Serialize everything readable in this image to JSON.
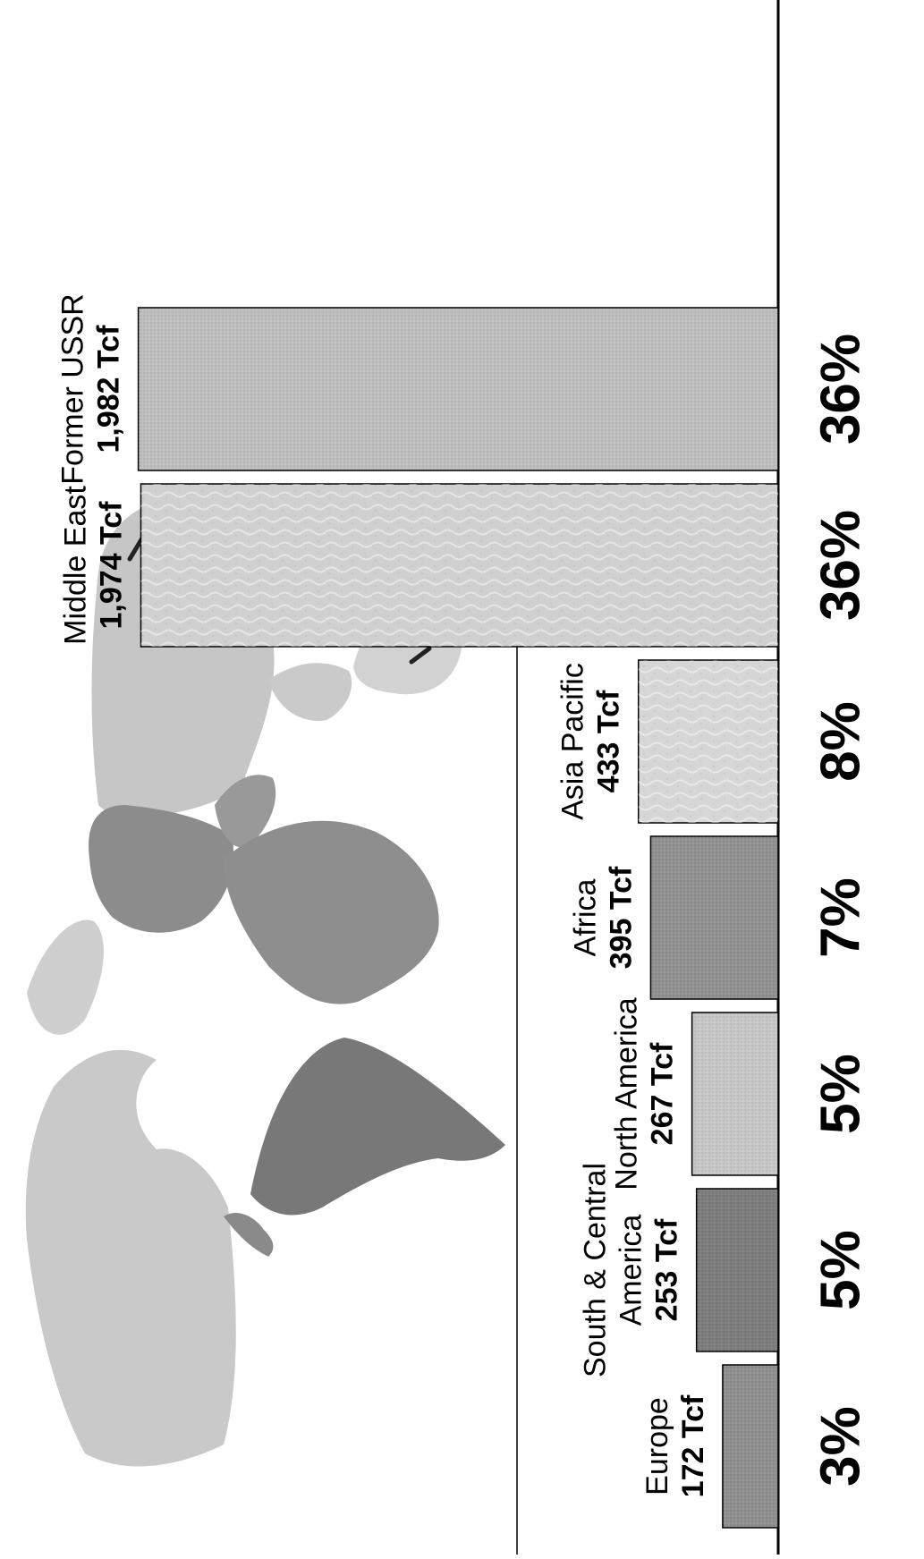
{
  "chart_data": {
    "type": "bar",
    "orientation": "rotated-90",
    "unit": "Tcf",
    "categories": [
      "Europe",
      "South & Central America",
      "North America",
      "Africa",
      "Asia Pacific",
      "Middle East",
      "Former USSR"
    ],
    "label_lines": [
      [
        "Europe"
      ],
      [
        "South & Central",
        "America"
      ],
      [
        "North America"
      ],
      [
        "Africa"
      ],
      [
        "Asia Pacific"
      ],
      [
        "Middle East"
      ],
      [
        "Former USSR"
      ]
    ],
    "values": [
      172,
      253,
      267,
      395,
      433,
      1974,
      1982
    ],
    "value_labels": [
      "172 Tcf",
      "253 Tcf",
      "267 Tcf",
      "395 Tcf",
      "433 Tcf",
      "1,974 Tcf",
      "1,982 Tcf"
    ],
    "shares": [
      "3%",
      "5%",
      "5%",
      "7%",
      "8%",
      "36%",
      "36%"
    ],
    "ylim": [
      0,
      2100
    ],
    "colors": {
      "europe": "#8f8f8f",
      "south_central_america": "#7d7d7d",
      "north_america": "#c7c7c7",
      "africa": "#909090",
      "asia_pacific": "#d6d6d6",
      "middle_east": "#d0d0d0",
      "former_ussr": "#bdbdbd",
      "map_light": "#c9c9c9",
      "map_dark": "#7a7a7a"
    },
    "grid": false,
    "legend": "none"
  }
}
